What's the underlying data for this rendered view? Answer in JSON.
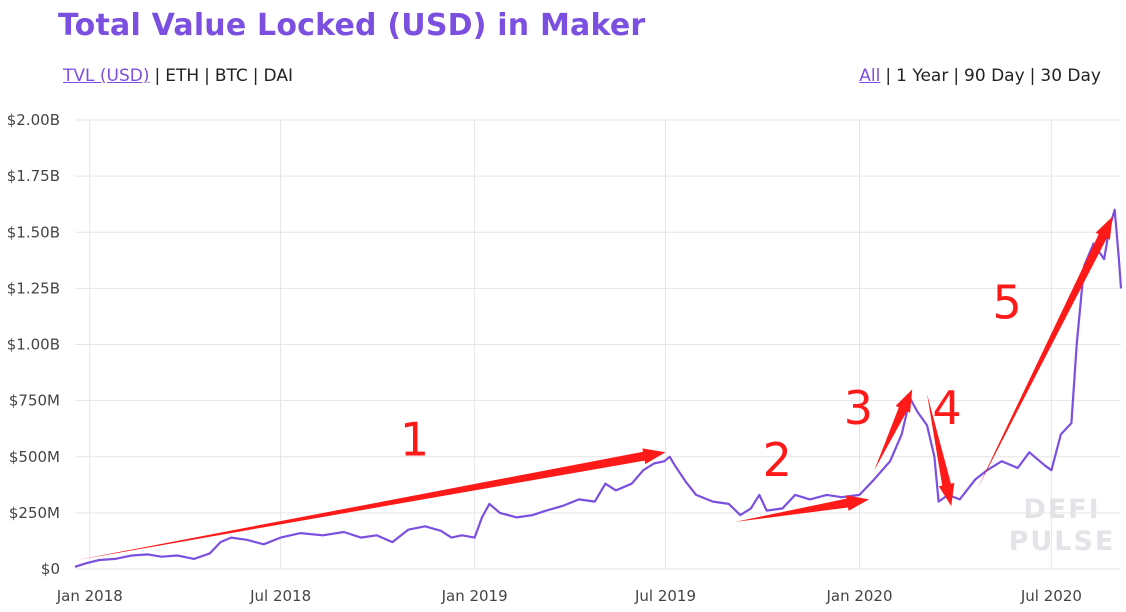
{
  "title": "Total Value Locked (USD) in Maker",
  "metric_options": [
    {
      "label": "TVL (USD)",
      "active": true
    },
    {
      "label": "ETH",
      "active": false
    },
    {
      "label": "BTC",
      "active": false
    },
    {
      "label": "DAI",
      "active": false
    }
  ],
  "range_options": [
    {
      "label": "All",
      "active": true
    },
    {
      "label": "1 Year",
      "active": false
    },
    {
      "label": "90 Day",
      "active": false
    },
    {
      "label": "30 Day",
      "active": false
    }
  ],
  "colors": {
    "accent": "#7b4fe0",
    "line": "#7b4fe0",
    "arrow": "#ff1a1a",
    "grid": "#e6e6e6"
  },
  "watermark": [
    "DEFI",
    "PULSE"
  ],
  "chart_data": {
    "type": "line",
    "title": "Total Value Locked (USD) in Maker",
    "xlabel": "",
    "ylabel": "",
    "x_range": [
      "2017-12-18",
      "2020-09-05"
    ],
    "ylim": [
      0,
      2000000000
    ],
    "y_ticks": [
      {
        "value": 0,
        "label": "$0"
      },
      {
        "value": 250000000,
        "label": "$250M"
      },
      {
        "value": 500000000,
        "label": "$500M"
      },
      {
        "value": 750000000,
        "label": "$750M"
      },
      {
        "value": 1000000000,
        "label": "$1.00B"
      },
      {
        "value": 1250000000,
        "label": "$1.25B"
      },
      {
        "value": 1500000000,
        "label": "$1.50B"
      },
      {
        "value": 1750000000,
        "label": "$1.75B"
      },
      {
        "value": 2000000000,
        "label": "$2.00B"
      }
    ],
    "x_ticks": [
      {
        "date": "2018-01-01",
        "label": "Jan 2018"
      },
      {
        "date": "2018-07-01",
        "label": "Jul 2018"
      },
      {
        "date": "2019-01-01",
        "label": "Jan 2019"
      },
      {
        "date": "2019-07-01",
        "label": "Jul 2019"
      },
      {
        "date": "2020-01-01",
        "label": "Jan 2020"
      },
      {
        "date": "2020-07-01",
        "label": "Jul 2020"
      }
    ],
    "grid": true,
    "legend": "none",
    "series": [
      {
        "name": "TVL (USD)",
        "points": [
          [
            "2017-12-18",
            10000000
          ],
          [
            "2017-12-28",
            25000000
          ],
          [
            "2018-01-10",
            40000000
          ],
          [
            "2018-01-25",
            45000000
          ],
          [
            "2018-02-10",
            60000000
          ],
          [
            "2018-02-25",
            65000000
          ],
          [
            "2018-03-10",
            55000000
          ],
          [
            "2018-03-25",
            60000000
          ],
          [
            "2018-04-10",
            45000000
          ],
          [
            "2018-04-25",
            70000000
          ],
          [
            "2018-05-05",
            120000000
          ],
          [
            "2018-05-15",
            140000000
          ],
          [
            "2018-05-30",
            130000000
          ],
          [
            "2018-06-15",
            110000000
          ],
          [
            "2018-07-01",
            140000000
          ],
          [
            "2018-07-20",
            160000000
          ],
          [
            "2018-08-10",
            150000000
          ],
          [
            "2018-08-30",
            165000000
          ],
          [
            "2018-09-15",
            140000000
          ],
          [
            "2018-09-30",
            150000000
          ],
          [
            "2018-10-15",
            120000000
          ],
          [
            "2018-10-30",
            175000000
          ],
          [
            "2018-11-15",
            190000000
          ],
          [
            "2018-11-30",
            170000000
          ],
          [
            "2018-12-10",
            140000000
          ],
          [
            "2018-12-20",
            150000000
          ],
          [
            "2019-01-01",
            140000000
          ],
          [
            "2019-01-08",
            230000000
          ],
          [
            "2019-01-15",
            290000000
          ],
          [
            "2019-01-25",
            250000000
          ],
          [
            "2019-02-10",
            230000000
          ],
          [
            "2019-02-25",
            240000000
          ],
          [
            "2019-03-10",
            260000000
          ],
          [
            "2019-03-25",
            280000000
          ],
          [
            "2019-04-10",
            310000000
          ],
          [
            "2019-04-25",
            300000000
          ],
          [
            "2019-05-05",
            380000000
          ],
          [
            "2019-05-15",
            350000000
          ],
          [
            "2019-05-30",
            380000000
          ],
          [
            "2019-06-10",
            440000000
          ],
          [
            "2019-06-20",
            470000000
          ],
          [
            "2019-06-30",
            480000000
          ],
          [
            "2019-07-05",
            500000000
          ],
          [
            "2019-07-10",
            460000000
          ],
          [
            "2019-07-20",
            390000000
          ],
          [
            "2019-07-30",
            330000000
          ],
          [
            "2019-08-15",
            300000000
          ],
          [
            "2019-08-30",
            290000000
          ],
          [
            "2019-09-10",
            240000000
          ],
          [
            "2019-09-20",
            270000000
          ],
          [
            "2019-09-28",
            330000000
          ],
          [
            "2019-10-05",
            260000000
          ],
          [
            "2019-10-20",
            270000000
          ],
          [
            "2019-11-01",
            330000000
          ],
          [
            "2019-11-15",
            310000000
          ],
          [
            "2019-12-01",
            330000000
          ],
          [
            "2019-12-15",
            320000000
          ],
          [
            "2020-01-01",
            330000000
          ],
          [
            "2020-01-15",
            400000000
          ],
          [
            "2020-01-30",
            480000000
          ],
          [
            "2020-02-10",
            600000000
          ],
          [
            "2020-02-18",
            760000000
          ],
          [
            "2020-02-25",
            700000000
          ],
          [
            "2020-03-05",
            640000000
          ],
          [
            "2020-03-12",
            500000000
          ],
          [
            "2020-03-16",
            300000000
          ],
          [
            "2020-03-25",
            330000000
          ],
          [
            "2020-04-05",
            310000000
          ],
          [
            "2020-04-20",
            400000000
          ],
          [
            "2020-05-01",
            440000000
          ],
          [
            "2020-05-15",
            480000000
          ],
          [
            "2020-05-30",
            450000000
          ],
          [
            "2020-06-10",
            520000000
          ],
          [
            "2020-06-25",
            460000000
          ],
          [
            "2020-07-01",
            440000000
          ],
          [
            "2020-07-10",
            600000000
          ],
          [
            "2020-07-20",
            650000000
          ],
          [
            "2020-07-25",
            1000000000
          ],
          [
            "2020-08-01",
            1350000000
          ],
          [
            "2020-08-10",
            1450000000
          ],
          [
            "2020-08-20",
            1380000000
          ],
          [
            "2020-08-25",
            1520000000
          ],
          [
            "2020-08-30",
            1600000000
          ],
          [
            "2020-09-03",
            1380000000
          ],
          [
            "2020-09-05",
            1250000000
          ]
        ]
      }
    ],
    "annotations": [
      {
        "label": "1",
        "from": [
          "2017-12-20",
          40000000
        ],
        "to": [
          "2019-07-01",
          520000000
        ],
        "label_at": [
          "2018-11-05",
          505000000
        ]
      },
      {
        "label": "2",
        "from": [
          "2019-09-05",
          210000000
        ],
        "to": [
          "2020-01-10",
          310000000
        ],
        "label_at": [
          "2019-10-15",
          415000000
        ]
      },
      {
        "label": "3",
        "from": [
          "2020-01-15",
          440000000
        ],
        "to": [
          "2020-02-20",
          800000000
        ],
        "label_at": [
          "2019-12-31",
          645000000
        ]
      },
      {
        "label": "4",
        "from": [
          "2020-03-05",
          780000000
        ],
        "to": [
          "2020-03-28",
          280000000
        ],
        "label_at": [
          "2020-03-24",
          645000000
        ]
      },
      {
        "label": "5",
        "from": [
          "2020-04-22",
          360000000
        ],
        "to": [
          "2020-08-28",
          1570000000
        ],
        "label_at": [
          "2020-05-20",
          1115000000
        ]
      }
    ]
  }
}
